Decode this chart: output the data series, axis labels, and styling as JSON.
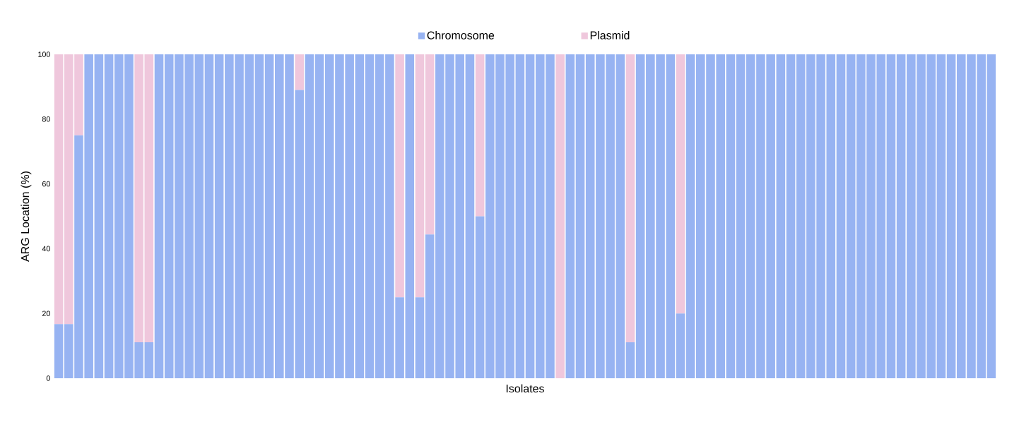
{
  "chart_data": {
    "type": "bar",
    "stacked": true,
    "xlabel": "Isolates",
    "ylabel": "ARG Location (%)",
    "categories": [
      null,
      null,
      null,
      null,
      null,
      null,
      null,
      null,
      null,
      null,
      null,
      null,
      null,
      null,
      null,
      null,
      null,
      null,
      null,
      null,
      null,
      null,
      null,
      null,
      null,
      null,
      null,
      null,
      null,
      null,
      null,
      null,
      null,
      null,
      null,
      null,
      null,
      null,
      null,
      null,
      null,
      null,
      null,
      null,
      null,
      null,
      null,
      null,
      null,
      null,
      null,
      null,
      null,
      null,
      null,
      null,
      null,
      null,
      null,
      null,
      null,
      null,
      null,
      null,
      null,
      null,
      null,
      null,
      null,
      null,
      null,
      null,
      null,
      null,
      null,
      null,
      null,
      null,
      null,
      null,
      null,
      null,
      null,
      null,
      null,
      null,
      null,
      null,
      null,
      null,
      null,
      null,
      null,
      null
    ],
    "series": [
      {
        "name": "Chromosome",
        "color": "#97b3f2",
        "values": [
          16.7,
          16.7,
          75,
          100,
          100,
          100,
          100,
          100,
          11.1,
          11.1,
          100,
          100,
          100,
          100,
          100,
          100,
          100,
          100,
          100,
          100,
          100,
          100,
          100,
          100,
          89,
          100,
          100,
          100,
          100,
          100,
          100,
          100,
          100,
          100,
          25,
          100,
          25,
          44.4,
          100,
          100,
          100,
          100,
          50,
          100,
          100,
          100,
          100,
          100,
          100,
          100,
          0,
          100,
          100,
          100,
          100,
          100,
          100,
          11.1,
          100,
          100,
          100,
          100,
          20,
          100,
          100,
          100,
          100,
          100,
          100,
          100,
          100,
          100,
          100,
          100,
          100,
          100,
          100,
          100,
          100,
          100,
          100,
          100,
          100,
          100,
          100,
          100,
          100,
          100,
          100,
          100,
          100,
          100,
          100,
          100
        ]
      },
      {
        "name": "Plasmid",
        "color": "#efc7dc",
        "values": [
          83.3,
          83.3,
          25,
          0,
          0,
          0,
          0,
          0,
          88.9,
          88.9,
          0,
          0,
          0,
          0,
          0,
          0,
          0,
          0,
          0,
          0,
          0,
          0,
          0,
          0,
          11,
          0,
          0,
          0,
          0,
          0,
          0,
          0,
          0,
          0,
          75,
          0,
          75,
          55.6,
          0,
          0,
          0,
          0,
          50,
          0,
          0,
          0,
          0,
          0,
          0,
          0,
          100,
          0,
          0,
          0,
          0,
          0,
          0,
          88.9,
          0,
          0,
          0,
          0,
          80,
          0,
          0,
          0,
          0,
          0,
          0,
          0,
          0,
          0,
          0,
          0,
          0,
          0,
          0,
          0,
          0,
          0,
          0,
          0,
          0,
          0,
          0,
          0,
          0,
          0,
          0,
          0,
          0,
          0,
          0,
          0
        ]
      }
    ],
    "ylim": [
      0,
      100
    ],
    "yticks": [
      0,
      20,
      40,
      60,
      80,
      100
    ],
    "legend": "top",
    "tick_labels": "y"
  }
}
